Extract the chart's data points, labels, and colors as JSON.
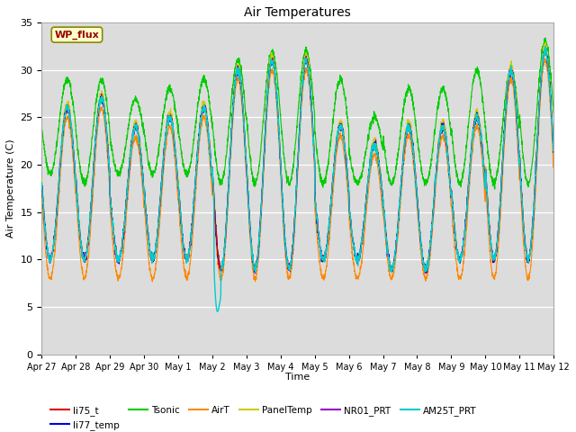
{
  "title": "Air Temperatures",
  "xlabel": "Time",
  "ylabel": "Air Temperature (C)",
  "ylim": [
    0,
    35
  ],
  "yticks": [
    0,
    5,
    10,
    15,
    20,
    25,
    30,
    35
  ],
  "background_color": "#dcdcdc",
  "fig_color": "#ffffff",
  "annotation_text": "WP_flux",
  "annotation_bg": "#ffffcc",
  "annotation_border": "#990000",
  "series_colors": {
    "li75_t": "#dd0000",
    "li77_temp": "#0000dd",
    "Tsonic": "#00cc00",
    "AirT": "#ff8800",
    "PanelTemp": "#cccc00",
    "NR01_PRT": "#9900cc",
    "AM25T_PRT": "#00cccc"
  },
  "tick_labels": [
    "Apr 27",
    "Apr 28",
    "Apr 29",
    "Apr 30",
    "May 1",
    "May 2",
    "May 3",
    "May 4",
    "May 5",
    "May 6",
    "May 7",
    "May 8",
    "May 9",
    "May 10",
    "May 11",
    "May 12"
  ],
  "day_maxes": [
    26,
    27,
    24,
    25,
    26,
    30,
    31,
    31,
    24,
    22,
    24,
    24,
    25,
    30,
    32,
    32
  ],
  "day_mins": [
    10,
    10,
    10,
    10,
    10,
    9,
    9,
    9,
    10,
    10,
    9,
    9,
    10,
    10,
    10,
    12
  ],
  "tsonic_day_maxes": [
    29,
    29,
    27,
    28,
    29,
    31,
    32,
    32,
    29,
    25,
    28,
    28,
    30,
    30,
    33,
    33
  ],
  "tsonic_day_mins": [
    19,
    18,
    19,
    19,
    19,
    18,
    18,
    18,
    18,
    18,
    18,
    18,
    18,
    18,
    18,
    18
  ],
  "airt_day_maxes": [
    25,
    26,
    23,
    24,
    25,
    29,
    30,
    30,
    23,
    21,
    23,
    23,
    24,
    29,
    31,
    31
  ],
  "airt_day_mins": [
    8,
    8,
    8,
    8,
    8,
    8,
    8,
    8,
    8,
    8,
    8,
    8,
    8,
    8,
    8,
    10
  ],
  "figsize": [
    6.4,
    4.8
  ],
  "dpi": 100
}
